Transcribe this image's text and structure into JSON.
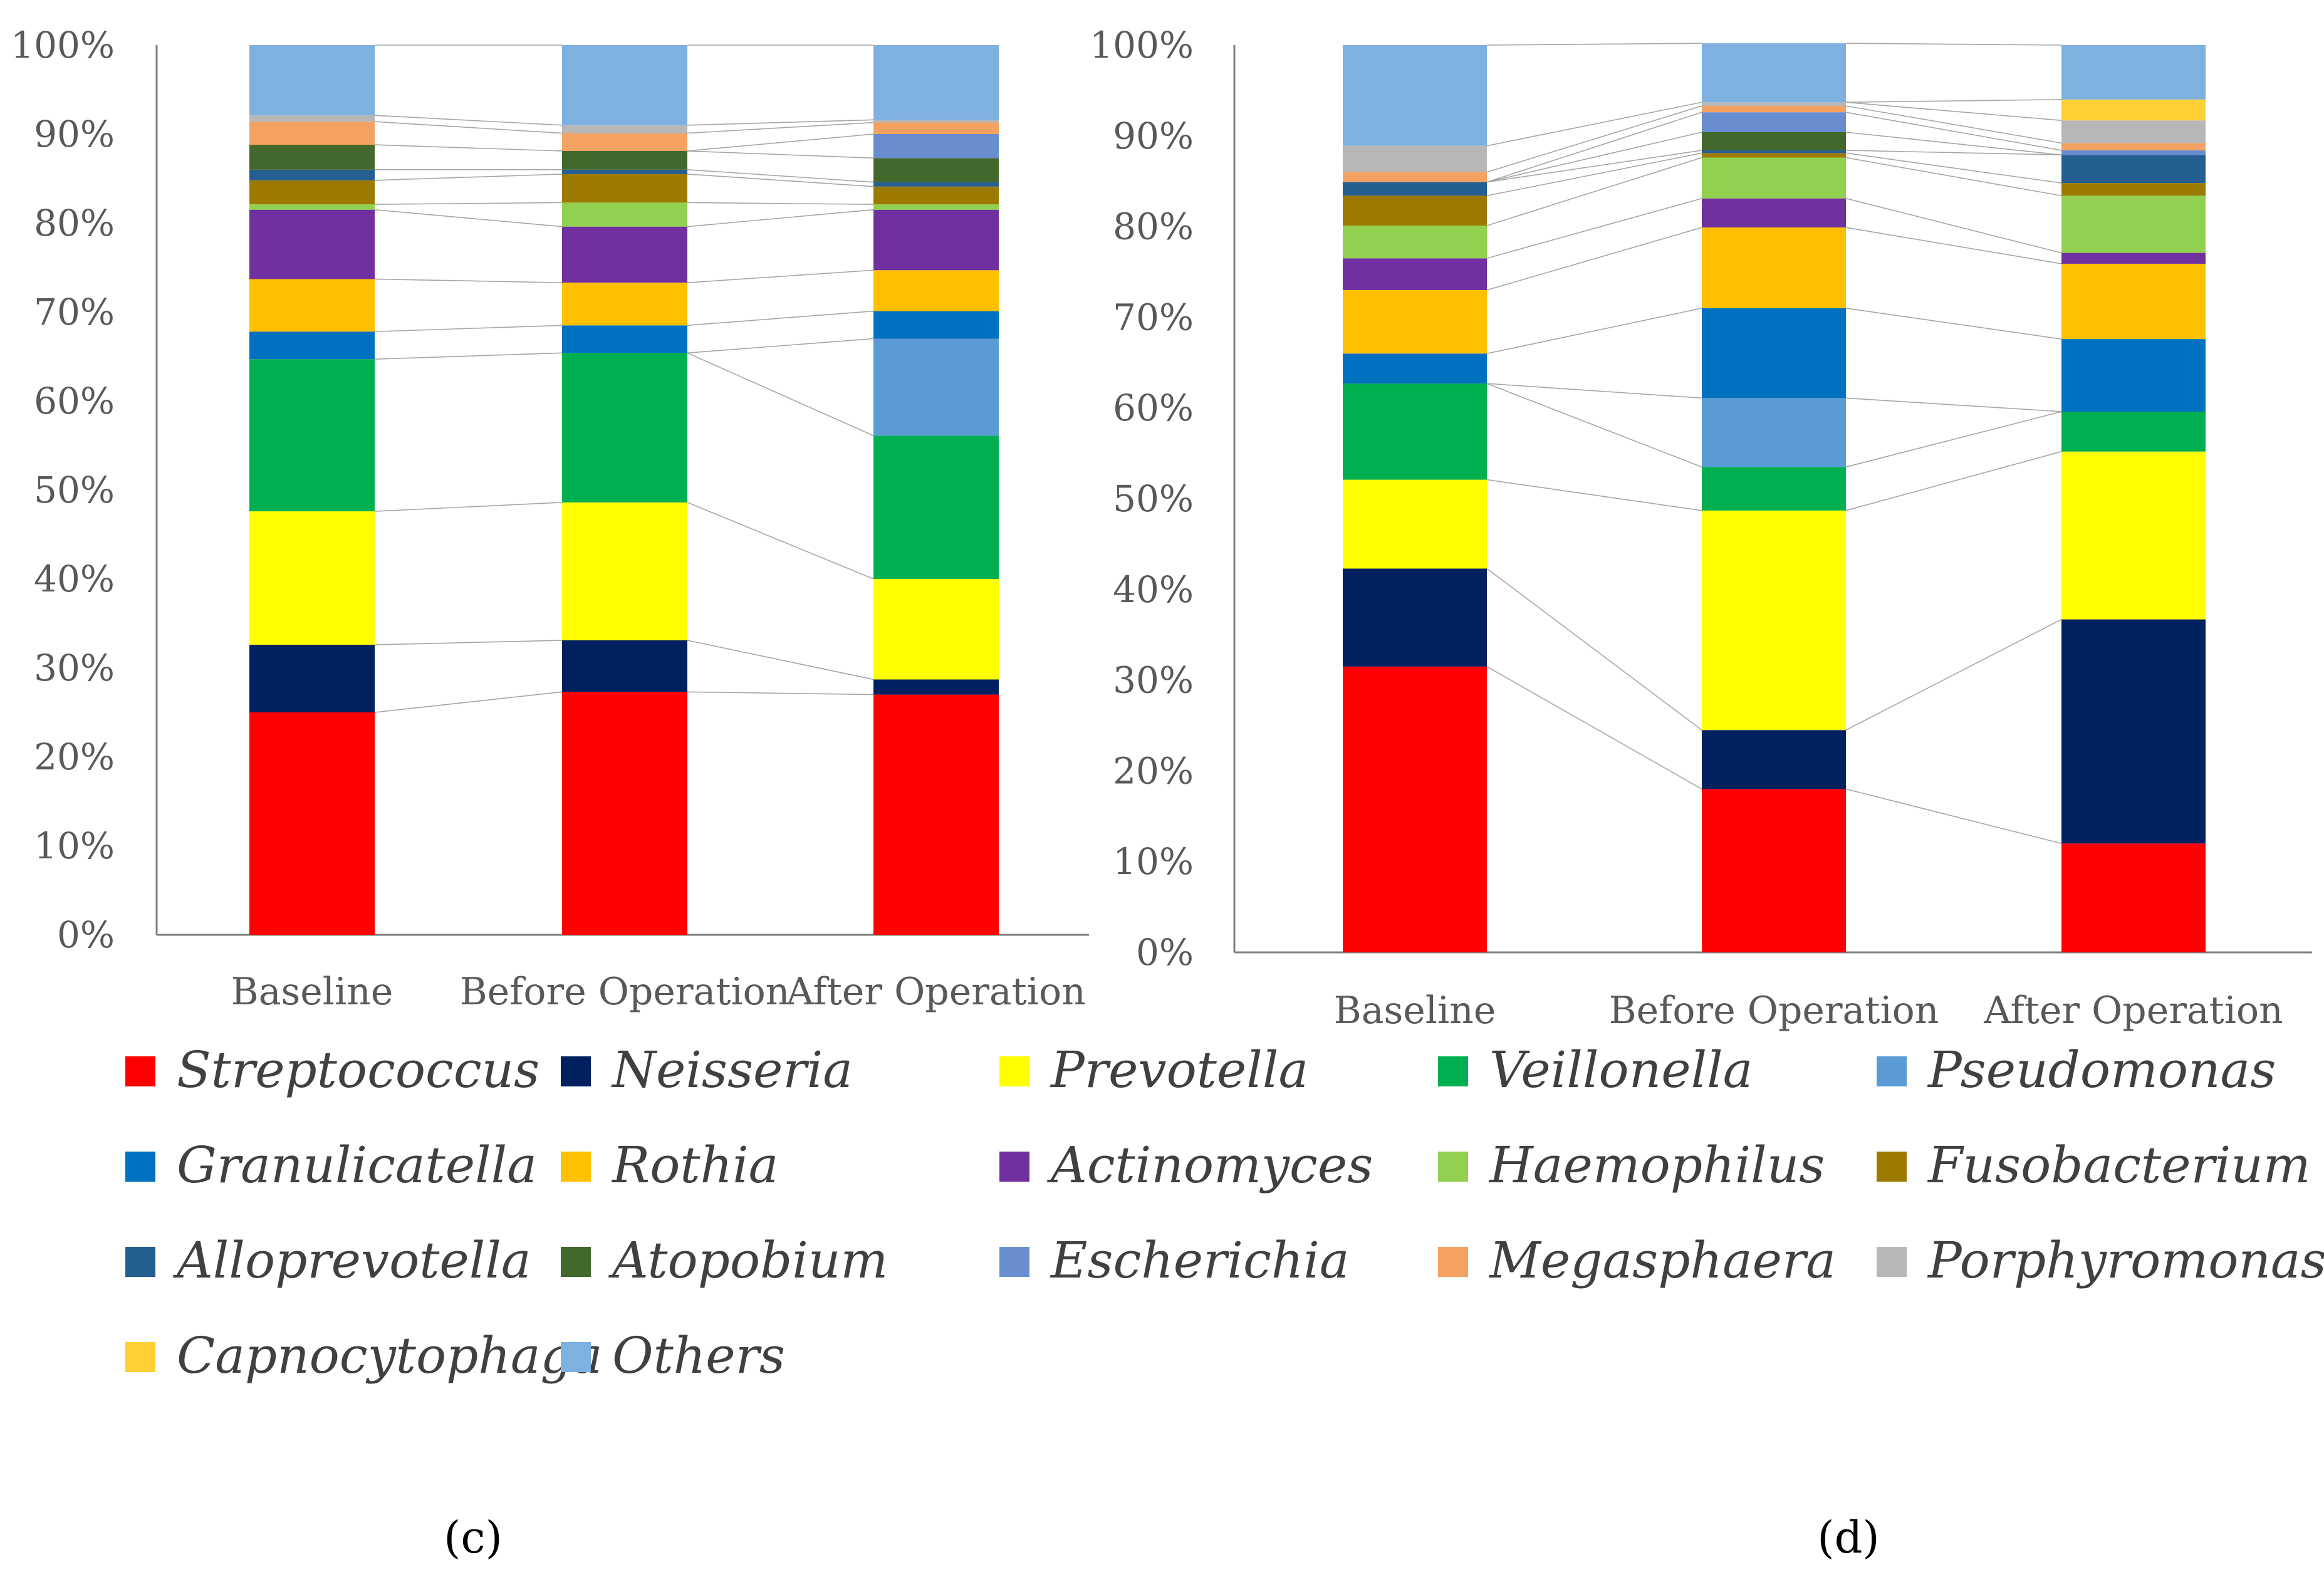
{
  "chart_data": [
    {
      "type": "bar",
      "stacked": true,
      "normalized": true,
      "panel": "c",
      "categories": [
        "Baseline",
        "Before Operation",
        "After Operation"
      ],
      "ylim": [
        0,
        100
      ],
      "yticks": [
        "0%",
        "10%",
        "20%",
        "30%",
        "40%",
        "50%",
        "60%",
        "70%",
        "80%",
        "90%",
        "100%"
      ],
      "series": [
        {
          "name": "Streptococcus",
          "values": [
            25,
            27.3,
            27
          ]
        },
        {
          "name": "Neisseria",
          "values": [
            7.6,
            5.8,
            1.7
          ]
        },
        {
          "name": "Prevotella",
          "values": [
            15,
            15.5,
            11.3
          ]
        },
        {
          "name": "Veillonella",
          "values": [
            17.1,
            16.8,
            16.1
          ]
        },
        {
          "name": "Pseudomonas",
          "values": [
            0,
            0,
            10.9
          ]
        },
        {
          "name": "Granulicatella",
          "values": [
            3.1,
            3.1,
            3.1
          ]
        },
        {
          "name": "Rothia",
          "values": [
            5.9,
            4.8,
            4.6
          ]
        },
        {
          "name": "Actinomyces",
          "values": [
            7.8,
            6.3,
            6.8
          ]
        },
        {
          "name": "Haemophilus",
          "values": [
            0.6,
            2.7,
            0.6
          ]
        },
        {
          "name": "Fusobacterium",
          "values": [
            2.7,
            3.2,
            2
          ]
        },
        {
          "name": "Alloprevotella",
          "values": [
            1.2,
            0.5,
            0.5
          ]
        },
        {
          "name": "Atopobium",
          "values": [
            2.8,
            2.1,
            2.7
          ]
        },
        {
          "name": "Escherichia",
          "values": [
            0,
            0,
            2.7
          ]
        },
        {
          "name": "Megasphaera",
          "values": [
            2.6,
            2,
            1.3
          ]
        },
        {
          "name": "Porphyromonas",
          "values": [
            0.7,
            0.9,
            0.3
          ]
        },
        {
          "name": "Capnocytophaga",
          "values": [
            0,
            0,
            0
          ]
        },
        {
          "name": "Others",
          "values": [
            7.9,
            9,
            8.4
          ]
        }
      ]
    },
    {
      "type": "bar",
      "stacked": true,
      "normalized": true,
      "panel": "d",
      "categories": [
        "Baseline",
        "Before Operation",
        "After Operation"
      ],
      "ylim": [
        0,
        100
      ],
      "yticks": [
        "0%",
        "10%",
        "20%",
        "30%",
        "40%",
        "50%",
        "60%",
        "70%",
        "80%",
        "90%",
        "100%"
      ],
      "series": [
        {
          "name": "Streptococcus",
          "values": [
            31.5,
            18,
            12
          ]
        },
        {
          "name": "Neisseria",
          "values": [
            10.8,
            6.5,
            24.7
          ]
        },
        {
          "name": "Prevotella",
          "values": [
            9.8,
            24.2,
            18.5
          ]
        },
        {
          "name": "Veillonella",
          "values": [
            10.6,
            4.8,
            4.4
          ]
        },
        {
          "name": "Pseudomonas",
          "values": [
            0,
            7.6,
            0
          ]
        },
        {
          "name": "Granulicatella",
          "values": [
            3.3,
            9.9,
            8
          ]
        },
        {
          "name": "Rothia",
          "values": [
            7,
            8.9,
            8.3
          ]
        },
        {
          "name": "Actinomyces",
          "values": [
            3.5,
            3.2,
            1.2
          ]
        },
        {
          "name": "Haemophilus",
          "values": [
            3.6,
            4.5,
            6.3
          ]
        },
        {
          "name": "Fusobacterium",
          "values": [
            3.3,
            0.5,
            1.4
          ]
        },
        {
          "name": "Alloprevotella",
          "values": [
            1.5,
            0.3,
            3.1
          ]
        },
        {
          "name": "Atopobium",
          "values": [
            0,
            2,
            0
          ]
        },
        {
          "name": "Escherichia",
          "values": [
            0,
            2.2,
            0.5
          ]
        },
        {
          "name": "Megasphaera",
          "values": [
            1.1,
            0.7,
            0.8
          ]
        },
        {
          "name": "Porphyromonas",
          "values": [
            2.9,
            0.4,
            2.5
          ]
        },
        {
          "name": "Capnocytophaga",
          "values": [
            0,
            0,
            2.3
          ]
        },
        {
          "name": "Others",
          "values": [
            11.1,
            6.5,
            6
          ]
        }
      ]
    }
  ],
  "legend": [
    {
      "name": "Streptococcus",
      "color": "#ff0000"
    },
    {
      "name": "Neisseria",
      "color": "#002060"
    },
    {
      "name": "Prevotella",
      "color": "#ffff00"
    },
    {
      "name": "Veillonella",
      "color": "#00b050"
    },
    {
      "name": "Pseudomonas",
      "color": "#5b9bd5"
    },
    {
      "name": "Granulicatella",
      "color": "#0070c0"
    },
    {
      "name": "Rothia",
      "color": "#ffc000"
    },
    {
      "name": "Actinomyces",
      "color": "#7030a0"
    },
    {
      "name": "Haemophilus",
      "color": "#92d050"
    },
    {
      "name": "Fusobacterium",
      "color": "#9c7a00"
    },
    {
      "name": "Alloprevotella",
      "color": "#255e91"
    },
    {
      "name": "Atopobium",
      "color": "#43682b"
    },
    {
      "name": "Escherichia",
      "color": "#698ed0"
    },
    {
      "name": "Megasphaera",
      "color": "#f4a261"
    },
    {
      "name": "Porphyromonas",
      "color": "#b7b7b7"
    },
    {
      "name": "Capnocytophaga",
      "color": "#ffd034"
    },
    {
      "name": "Others",
      "color": "#7eb0e0"
    }
  ],
  "panel_labels": {
    "c": "(c)",
    "d": "(d)"
  }
}
